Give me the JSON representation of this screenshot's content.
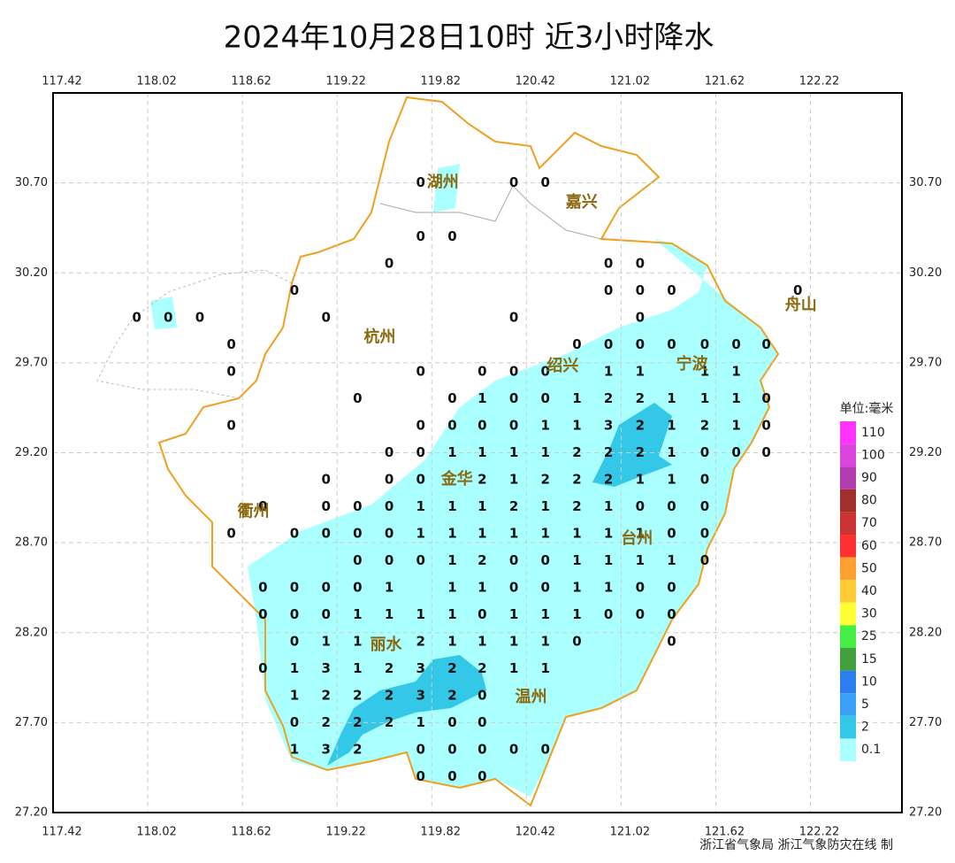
{
  "chart_data": {
    "type": "station-map",
    "title": "2024年10月28日10时  近3小时降水",
    "footer": "浙江省气象局   浙江气象防灾在线 制",
    "xlim": [
      117.42,
      122.8
    ],
    "ylim": [
      27.2,
      31.2
    ],
    "xticks": [
      117.42,
      118.02,
      118.62,
      119.22,
      119.82,
      120.42,
      121.02,
      121.62,
      122.22
    ],
    "yticks": [
      {
        "value": 30.7,
        "label": "30.70"
      },
      {
        "value": 30.2,
        "label": "30.20"
      },
      {
        "value": 29.7,
        "label": "29.70"
      },
      {
        "value": 29.2,
        "label": "29.20"
      },
      {
        "value": 28.7,
        "label": "28.70"
      },
      {
        "value": 28.2,
        "label": "28.20"
      },
      {
        "value": 27.7,
        "label": "27.70"
      },
      {
        "value": 27.2,
        "label": "27.20"
      }
    ],
    "grid": true,
    "cities": [
      {
        "name": "湖州",
        "lon": 119.89,
        "lat": 30.7
      },
      {
        "name": "嘉兴",
        "lon": 120.77,
        "lat": 30.59
      },
      {
        "name": "杭州",
        "lon": 119.49,
        "lat": 29.84
      },
      {
        "name": "绍兴",
        "lon": 120.65,
        "lat": 29.68
      },
      {
        "name": "宁波",
        "lon": 121.47,
        "lat": 29.69
      },
      {
        "name": "舟山",
        "lon": 122.16,
        "lat": 30.02
      },
      {
        "name": "衢州",
        "lon": 118.69,
        "lat": 28.87
      },
      {
        "name": "金华",
        "lon": 119.98,
        "lat": 29.05
      },
      {
        "name": "台州",
        "lon": 121.12,
        "lat": 28.72
      },
      {
        "name": "丽水",
        "lon": 119.53,
        "lat": 28.13
      },
      {
        "name": "温州",
        "lon": 120.45,
        "lat": 27.84
      }
    ],
    "rows": [
      {
        "lat": 30.7,
        "lon": [
          119.75,
          120.34,
          120.54
        ],
        "values": [
          0,
          0,
          0
        ]
      },
      {
        "lat": 30.4,
        "lon": [
          119.75,
          119.95
        ],
        "values": [
          0,
          0
        ]
      },
      {
        "lat": 30.25,
        "lon": [
          119.55,
          120.94,
          121.14
        ],
        "values": [
          0,
          0,
          0
        ]
      },
      {
        "lat": 30.1,
        "lon": [
          118.95,
          120.94,
          121.14,
          121.34,
          122.14
        ],
        "values": [
          0,
          0,
          0,
          0,
          0
        ]
      },
      {
        "lat": 29.95,
        "lon": [
          117.95,
          118.15,
          118.35,
          119.15,
          120.34,
          121.14
        ],
        "values": [
          0,
          0,
          0,
          0,
          0,
          0
        ]
      },
      {
        "lat": 29.8,
        "lon": [
          118.55,
          120.74,
          120.94,
          121.14,
          121.34,
          121.55,
          121.75,
          121.94
        ],
        "values": [
          0,
          0,
          0,
          0,
          0,
          0,
          0,
          0
        ]
      },
      {
        "lat": 29.65,
        "lon": [
          118.55,
          119.75,
          120.14,
          120.34,
          120.54,
          120.94,
          121.14,
          121.55,
          121.75
        ],
        "values": [
          0,
          0,
          0,
          0,
          0,
          1,
          1,
          1,
          1
        ]
      },
      {
        "lat": 29.5,
        "lon": [
          119.35,
          119.95,
          120.14,
          120.34,
          120.54,
          120.74,
          120.94,
          121.14,
          121.34,
          121.55,
          121.75,
          121.94
        ],
        "values": [
          0,
          0,
          1,
          0,
          0,
          1,
          2,
          2,
          1,
          1,
          1,
          0
        ]
      },
      {
        "lat": 29.35,
        "lon": [
          118.55,
          119.75,
          119.95,
          120.14,
          120.34,
          120.54,
          120.74,
          120.94,
          121.14,
          121.34,
          121.55,
          121.75,
          121.94
        ],
        "values": [
          0,
          0,
          0,
          0,
          0,
          1,
          1,
          3,
          2,
          1,
          2,
          1,
          0
        ]
      },
      {
        "lat": 29.2,
        "lon": [
          119.55,
          119.75,
          119.95,
          120.14,
          120.34,
          120.54,
          120.74,
          120.94,
          121.14,
          121.34,
          121.55,
          121.75,
          121.94
        ],
        "values": [
          0,
          0,
          1,
          1,
          1,
          1,
          2,
          2,
          2,
          1,
          0,
          0,
          0
        ]
      },
      {
        "lat": 29.05,
        "lon": [
          119.15,
          119.55,
          119.75,
          120.14,
          120.34,
          120.54,
          120.74,
          120.94,
          121.14,
          121.34,
          121.55
        ],
        "values": [
          0,
          0,
          0,
          2,
          1,
          2,
          2,
          2,
          1,
          1,
          0
        ]
      },
      {
        "lat": 28.9,
        "lon": [
          118.75,
          119.15,
          119.35,
          119.55,
          119.75,
          119.95,
          120.14,
          120.34,
          120.54,
          120.74,
          120.94,
          121.14,
          121.34,
          121.55
        ],
        "values": [
          0,
          0,
          0,
          0,
          1,
          1,
          1,
          2,
          1,
          2,
          1,
          0,
          0,
          0
        ]
      },
      {
        "lat": 28.75,
        "lon": [
          118.55,
          118.95,
          119.15,
          119.35,
          119.55,
          119.75,
          119.95,
          120.14,
          120.34,
          120.54,
          120.74,
          120.94,
          121.14,
          121.34,
          121.55
        ],
        "values": [
          0,
          0,
          0,
          0,
          0,
          1,
          1,
          1,
          1,
          1,
          1,
          1,
          1,
          0,
          0
        ]
      },
      {
        "lat": 28.6,
        "lon": [
          119.35,
          119.55,
          119.75,
          119.95,
          120.14,
          120.34,
          120.54,
          120.74,
          120.94,
          121.14,
          121.34,
          121.55
        ],
        "values": [
          0,
          0,
          0,
          1,
          2,
          0,
          0,
          1,
          1,
          1,
          1,
          0
        ]
      },
      {
        "lat": 28.45,
        "lon": [
          118.75,
          118.95,
          119.15,
          119.35,
          119.55,
          119.95,
          120.14,
          120.34,
          120.54,
          120.74,
          120.94,
          121.14,
          121.34
        ],
        "values": [
          0,
          0,
          0,
          0,
          1,
          1,
          1,
          0,
          0,
          1,
          1,
          0,
          0
        ]
      },
      {
        "lat": 28.3,
        "lon": [
          118.75,
          118.95,
          119.15,
          119.35,
          119.55,
          119.75,
          119.95,
          120.14,
          120.34,
          120.54,
          120.74,
          120.94,
          121.14,
          121.34
        ],
        "values": [
          0,
          0,
          0,
          1,
          1,
          1,
          1,
          0,
          1,
          1,
          1,
          0,
          0,
          0
        ]
      },
      {
        "lat": 28.15,
        "lon": [
          118.95,
          119.15,
          119.35,
          119.75,
          119.95,
          120.14,
          120.34,
          120.54,
          120.74,
          121.34
        ],
        "values": [
          0,
          1,
          1,
          2,
          1,
          1,
          1,
          1,
          0,
          0
        ]
      },
      {
        "lat": 28.0,
        "lon": [
          118.75,
          118.95,
          119.15,
          119.35,
          119.55,
          119.75,
          119.95,
          120.14,
          120.34,
          120.54
        ],
        "values": [
          0,
          1,
          3,
          1,
          2,
          3,
          2,
          2,
          1,
          1
        ]
      },
      {
        "lat": 27.85,
        "lon": [
          118.95,
          119.15,
          119.35,
          119.55,
          119.75,
          119.95,
          120.14
        ],
        "values": [
          1,
          2,
          2,
          2,
          3,
          2,
          0
        ]
      },
      {
        "lat": 27.7,
        "lon": [
          118.95,
          119.15,
          119.35,
          119.55,
          119.75,
          119.95,
          120.14
        ],
        "values": [
          0,
          2,
          2,
          2,
          1,
          0,
          0
        ]
      },
      {
        "lat": 27.55,
        "lon": [
          118.95,
          119.15,
          119.35,
          119.75,
          119.95,
          120.14,
          120.34,
          120.54
        ],
        "values": [
          1,
          3,
          2,
          0,
          0,
          0,
          0,
          0
        ]
      },
      {
        "lat": 27.4,
        "lon": [
          119.75,
          119.95,
          120.14
        ],
        "values": [
          0,
          0,
          0
        ]
      }
    ],
    "legend": {
      "title": "单位:毫米",
      "levels": [
        {
          "value": 110,
          "color": "#ff33ff"
        },
        {
          "value": 100,
          "color": "#dd44dd"
        },
        {
          "value": 90,
          "color": "#b03cb0"
        },
        {
          "value": 80,
          "color": "#a0302c"
        },
        {
          "value": 70,
          "color": "#cc3333"
        },
        {
          "value": 60,
          "color": "#ff3030"
        },
        {
          "value": 50,
          "color": "#ffa030"
        },
        {
          "value": 40,
          "color": "#ffcc33"
        },
        {
          "value": 30,
          "color": "#ffff33"
        },
        {
          "value": 25,
          "color": "#44ee44"
        },
        {
          "value": 15,
          "color": "#44a03c"
        },
        {
          "value": 10,
          "color": "#2c7ef0"
        },
        {
          "value": 5,
          "color": "#3aa0f8"
        },
        {
          "value": 2,
          "color": "#33c8e8"
        },
        {
          "value": 0.1,
          "color": "#aaffff"
        }
      ]
    }
  }
}
